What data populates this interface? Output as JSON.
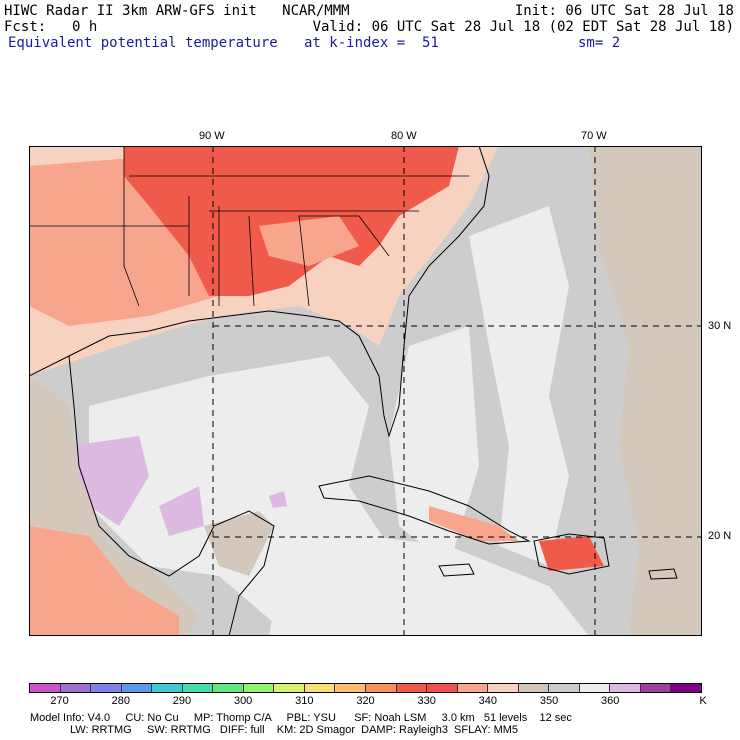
{
  "header": {
    "title_left": "HIWC Radar II 3km ARW-GFS init   NCAR/MMM",
    "init": "Init: 06 UTC Sat 28 Jul 18",
    "fcst_label": "Fcst:",
    "fcst_value": "0 h",
    "valid": "Valid: 06 UTC Sat 28 Jul 18 (02 EDT Sat 28 Jul 18)",
    "field": "Equivalent potential temperature",
    "level": "at k-index =  51",
    "smooth": "sm= 2"
  },
  "map": {
    "lon_labels": [
      "90 W",
      "80 W",
      "70 W"
    ],
    "lat_labels": [
      "30 N",
      "20 N"
    ],
    "colors": {
      "land_hot": "#f05a4a",
      "land_warm": "#f8a58e",
      "land_mild": "#f7d2c0",
      "tan": "#d4c7bc",
      "gray": "#cdcdcd",
      "light": "#ededed",
      "lavender": "#dcb9e0"
    }
  },
  "colorbar": {
    "colors": [
      "#cc55cc",
      "#a070d0",
      "#8080e8",
      "#5a9be8",
      "#40c8d8",
      "#40e0b0",
      "#60e880",
      "#98f070",
      "#d8f070",
      "#f8e070",
      "#f8c070",
      "#f89060",
      "#f05a4a",
      "#ef5050",
      "#f8a58e",
      "#f7d2c0",
      "#d4c7bc",
      "#cdcdcd",
      "#ededed",
      "#dcb9e0",
      "#a040a0",
      "#800080"
    ],
    "ticks": [
      "270",
      "280",
      "290",
      "300",
      "310",
      "320",
      "330",
      "340",
      "350",
      "360"
    ],
    "unit": "K"
  },
  "footer": {
    "line1": "Model Info: V4.0     CU: No Cu     MP: Thomp C/A     PBL: YSU      SF: Noah LSM     3.0 km   51 levels    12 sec",
    "line2": "LW: RRTMG     SW: RRTMG   DIFF: full    KM: 2D Smagor  DAMP: Rayleigh3  SFLAY: MM5"
  }
}
